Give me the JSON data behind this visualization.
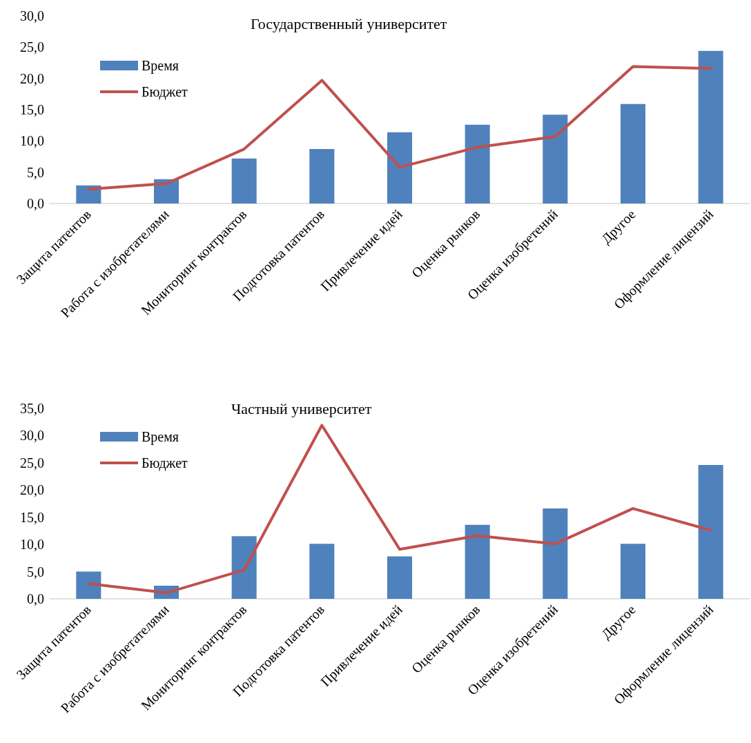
{
  "chart_data": [
    {
      "type": "bar",
      "title": "Государственный университет",
      "categories": [
        "Защита патентов",
        "Работа с изобретателями",
        "Мониторинг контрактов",
        "Подготовка патентов",
        "Привлечение идей",
        "Оценка рынков",
        "Оценка изобретений",
        "Другое",
        "Оформление лицензий"
      ],
      "series": [
        {
          "name": "Время",
          "color": "#4f81bd",
          "values": [
            2.9,
            3.9,
            7.2,
            8.7,
            11.4,
            12.6,
            14.2,
            15.9,
            24.4
          ]
        },
        {
          "name": "Бюджет",
          "type": "line",
          "color": "#c0504d",
          "values": [
            2.3,
            3.2,
            8.7,
            19.7,
            5.8,
            9.0,
            10.7,
            21.9,
            21.6
          ]
        }
      ],
      "ylim": [
        0,
        30
      ],
      "yticks": [
        {
          "value": 0,
          "label": "0,0"
        },
        {
          "value": 5,
          "label": "5,0"
        },
        {
          "value": 10,
          "label": "10,0"
        },
        {
          "value": 15,
          "label": "15,0"
        },
        {
          "value": 20,
          "label": "20,0"
        },
        {
          "value": 25,
          "label": "25,0"
        },
        {
          "value": 30,
          "label": "30,0"
        }
      ],
      "grid": false,
      "legend": "top left",
      "marker": "none",
      "line_style": "solid"
    },
    {
      "type": "bar",
      "title": "Частный университет",
      "categories": [
        "Защита патентов",
        "Работа с изобретателями",
        "Мониторинг контрактов",
        "Подготовка патентов",
        "Привлечение идей",
        "Оценка рынков",
        "Оценка изобретений",
        "Другое",
        "Оформление лицензий"
      ],
      "series": [
        {
          "name": "Время",
          "color": "#4f81bd",
          "values": [
            5.0,
            2.4,
            11.5,
            10.1,
            7.8,
            13.6,
            16.6,
            10.1,
            24.6
          ]
        },
        {
          "name": "Бюджет",
          "type": "line",
          "color": "#c0504d",
          "values": [
            2.8,
            1.1,
            5.3,
            31.9,
            9.1,
            11.6,
            10.1,
            16.6,
            12.6
          ]
        }
      ],
      "ylim": [
        0,
        35
      ],
      "yticks": [
        {
          "value": 0,
          "label": "0,0"
        },
        {
          "value": 5,
          "label": "5,0"
        },
        {
          "value": 10,
          "label": "10,0"
        },
        {
          "value": 15,
          "label": "15,0"
        },
        {
          "value": 20,
          "label": "20,0"
        },
        {
          "value": 25,
          "label": "25,0"
        },
        {
          "value": 30,
          "label": "30,0"
        },
        {
          "value": 35,
          "label": "35,0"
        }
      ],
      "grid": false,
      "legend": "top left",
      "marker": "none",
      "line_style": "solid"
    }
  ]
}
